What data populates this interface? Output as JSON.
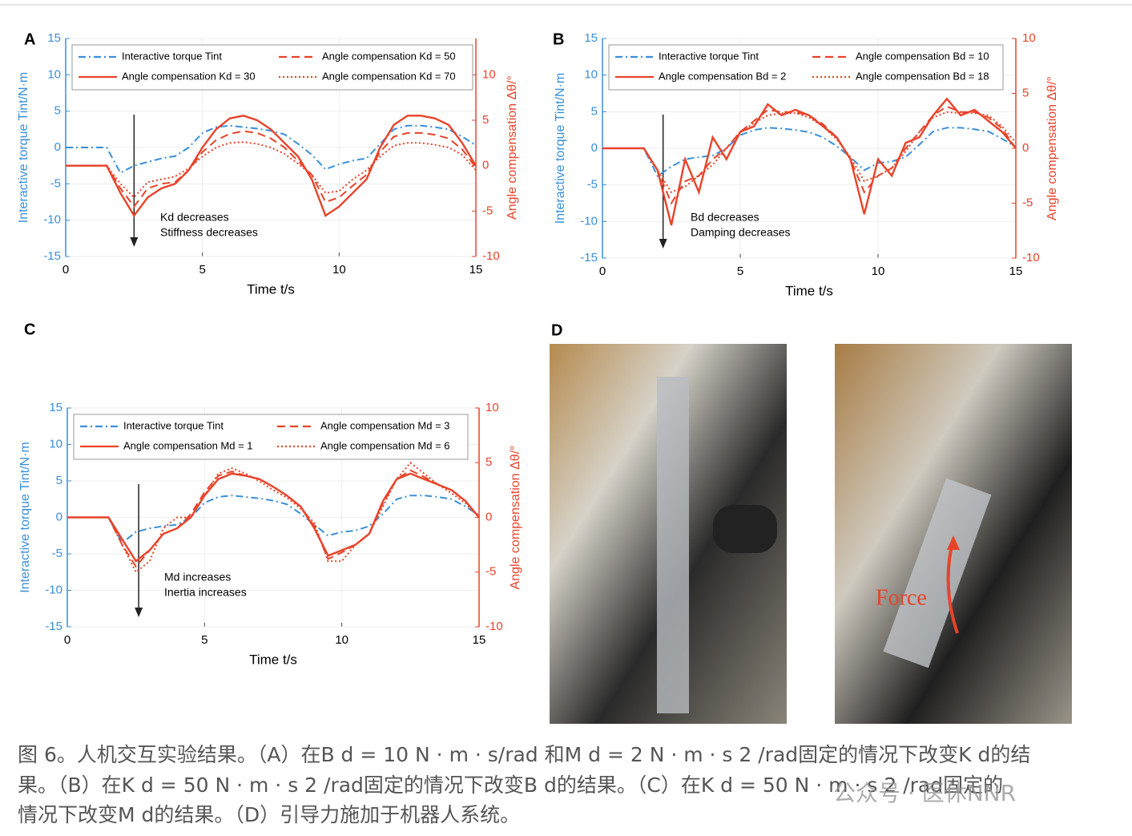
{
  "chart_data": [
    {
      "type": "line",
      "panel": "A",
      "xlabel": "Time t/s",
      "ylabel": "Interactive torque Tint/N·m",
      "y2label": "Angle compensation Δθ/°",
      "annotation": [
        "Kd decreases",
        "Stiffness decreases"
      ],
      "xlim": [
        0,
        15
      ],
      "xticks": [
        0,
        5,
        10,
        15
      ],
      "ylim": [
        -15,
        15
      ],
      "yticks": [
        -15,
        -10,
        -5,
        0,
        5,
        10,
        15
      ],
      "y2lim": [
        -10,
        14
      ],
      "y2ticks": [
        -10,
        -5,
        0,
        5,
        10
      ],
      "x": [
        0,
        0.5,
        1,
        1.5,
        2,
        2.5,
        3,
        3.5,
        4,
        4.5,
        5,
        5.5,
        6,
        6.5,
        7,
        7.5,
        8,
        8.5,
        9,
        9.5,
        10,
        10.5,
        11,
        11.5,
        12,
        12.5,
        13,
        13.5,
        14,
        14.5,
        15
      ],
      "series": [
        {
          "name": "Interactive torque Tint",
          "color": "#3a8fd9",
          "dash": "dashdot",
          "values": [
            0,
            0,
            0,
            0,
            -3.5,
            -2.5,
            -2,
            -1.5,
            -1.2,
            0,
            2,
            2.8,
            3,
            2.8,
            2.6,
            2.3,
            1.8,
            0.5,
            -1,
            -3,
            -2.3,
            -1.8,
            -1.5,
            0.5,
            2.5,
            3,
            3,
            2.8,
            2.5,
            1.5,
            0.3
          ]
        },
        {
          "name": "Angle compensation Kd = 30",
          "color": "#e8432a",
          "dash": "solid",
          "axis": "y2",
          "values": [
            0,
            0,
            0,
            0,
            -3,
            -5.5,
            -3.5,
            -2.5,
            -2,
            -0.5,
            2,
            4,
            5.2,
            5.5,
            5,
            4,
            2.5,
            1,
            -1.5,
            -5.5,
            -4.5,
            -3,
            -1.5,
            2,
            4.5,
            5.5,
            5.5,
            5.2,
            4.5,
            2.5,
            0
          ]
        },
        {
          "name": "Angle compensation Kd = 50",
          "color": "#e8432a",
          "dash": "dashed",
          "axis": "y2",
          "values": [
            0,
            0,
            0,
            0,
            -2.5,
            -4.5,
            -2.5,
            -2,
            -1.8,
            -0.5,
            1.5,
            2.8,
            3.5,
            3.8,
            3.6,
            3,
            2,
            0.5,
            -1,
            -4,
            -3.5,
            -2.2,
            -1,
            1.5,
            3.2,
            3.6,
            3.6,
            3.4,
            3,
            1.8,
            -0.2
          ]
        },
        {
          "name": "Angle compensation Kd = 70",
          "color": "#e8432a",
          "dash": "dotted",
          "axis": "y2",
          "values": [
            0,
            0,
            0,
            0,
            -2,
            -3.5,
            -1.8,
            -1.5,
            -1.2,
            -0.3,
            1,
            2,
            2.5,
            2.6,
            2.4,
            2,
            1.3,
            0.2,
            -1,
            -3,
            -2.8,
            -1.5,
            -0.5,
            1,
            2.2,
            2.5,
            2.5,
            2.3,
            2,
            1.2,
            -0.5
          ]
        }
      ]
    },
    {
      "type": "line",
      "panel": "B",
      "xlabel": "Time t/s",
      "ylabel": "Interactive torque Tint/N·m",
      "y2label": "Angle compensation Δθ/°",
      "annotation": [
        "Bd decreases",
        "Damping decreases"
      ],
      "xlim": [
        0,
        15
      ],
      "xticks": [
        0,
        5,
        10,
        15
      ],
      "ylim": [
        -15,
        15
      ],
      "yticks": [
        -15,
        -10,
        -5,
        0,
        5,
        10,
        15
      ],
      "y2lim": [
        -10,
        10
      ],
      "y2ticks": [
        -10,
        -5,
        0,
        5,
        10
      ],
      "x": [
        0,
        0.5,
        1,
        1.5,
        2,
        2.5,
        3,
        3.5,
        4,
        4.5,
        5,
        5.5,
        6,
        6.5,
        7,
        7.5,
        8,
        8.5,
        9,
        9.5,
        10,
        10.5,
        11,
        11.5,
        12,
        12.5,
        13,
        13.5,
        14,
        14.5,
        15
      ],
      "series": [
        {
          "name": "Interactive torque Tint",
          "color": "#3a8fd9",
          "dash": "dashdot",
          "values": [
            0,
            0,
            0,
            0,
            -3.8,
            -2.5,
            -1.5,
            -1.2,
            -1,
            0,
            1.8,
            2.5,
            2.8,
            2.7,
            2.5,
            2.2,
            1.5,
            0.3,
            -1.2,
            -3,
            -2,
            -1.8,
            -1.2,
            0.5,
            2.3,
            2.8,
            2.8,
            2.6,
            2.3,
            1.3,
            0.2
          ]
        },
        {
          "name": "Angle compensation Bd = 2",
          "color": "#e8432a",
          "dash": "solid",
          "axis": "y2",
          "values": [
            0,
            0,
            0,
            0,
            -2,
            -7,
            -1,
            -4,
            1,
            -1,
            1.5,
            2,
            4,
            3,
            3.5,
            3,
            2,
            1,
            -1,
            -6,
            -1,
            -2.5,
            0.5,
            1,
            3,
            4.5,
            3,
            3.5,
            2.5,
            1.5,
            0
          ]
        },
        {
          "name": "Angle compensation Bd = 10",
          "color": "#e8432a",
          "dash": "dashed",
          "axis": "y2",
          "values": [
            0,
            0,
            0,
            0,
            -2,
            -5,
            -3,
            -2.5,
            -1,
            0,
            1.5,
            2.5,
            3.5,
            3.3,
            3.3,
            3,
            2.2,
            1,
            -1,
            -4,
            -2.5,
            -1.8,
            0,
            1.5,
            3,
            3.8,
            3.3,
            3.3,
            2.8,
            1.8,
            0
          ]
        },
        {
          "name": "Angle compensation Bd = 18",
          "color": "#e8432a",
          "dash": "dotted",
          "axis": "y2",
          "values": [
            0,
            0,
            0,
            0,
            -2,
            -4,
            -3.5,
            -2.5,
            -1.5,
            0,
            1.5,
            2.3,
            3,
            3.2,
            3.2,
            2.8,
            2,
            0.8,
            -0.8,
            -3,
            -2.5,
            -1.8,
            -0.3,
            1.5,
            2.8,
            3.3,
            3.2,
            3.2,
            3,
            2,
            0.5
          ]
        }
      ]
    },
    {
      "type": "line",
      "panel": "C",
      "xlabel": "Time t/s",
      "ylabel": "Interactive torque Tint/N·m",
      "y2label": "Angle compensation Δθ/°",
      "annotation": [
        "Md increases",
        "Inertia increases"
      ],
      "xlim": [
        0,
        15
      ],
      "xticks": [
        0,
        5,
        10,
        15
      ],
      "ylim": [
        -15,
        15
      ],
      "yticks": [
        -15,
        -10,
        -5,
        0,
        5,
        10,
        15
      ],
      "y2lim": [
        -10,
        10
      ],
      "y2ticks": [
        -10,
        -5,
        0,
        5,
        10
      ],
      "x": [
        0,
        0.5,
        1,
        1.5,
        2,
        2.5,
        3,
        3.5,
        4,
        4.5,
        5,
        5.5,
        6,
        6.5,
        7,
        7.5,
        8,
        8.5,
        9,
        9.5,
        10,
        10.5,
        11,
        11.5,
        12,
        12.5,
        13,
        13.5,
        14,
        14.5,
        15
      ],
      "series": [
        {
          "name": "Interactive torque Tint",
          "color": "#3a8fd9",
          "dash": "dashdot",
          "values": [
            0,
            0,
            0,
            0,
            -3.5,
            -2,
            -1.5,
            -1.2,
            -1,
            0,
            2,
            2.8,
            3,
            2.8,
            2.6,
            2.3,
            1.8,
            0.5,
            -1,
            -2.5,
            -2,
            -1.8,
            -1.2,
            0.5,
            2.5,
            3,
            3,
            2.8,
            2.5,
            1.5,
            0.3
          ]
        },
        {
          "name": "Angle compensation Md = 1",
          "color": "#e8432a",
          "dash": "solid",
          "axis": "y2",
          "values": [
            0,
            0,
            0,
            0,
            -2,
            -4,
            -3,
            -1.5,
            -1,
            0,
            2,
            3.5,
            4,
            3.8,
            3.5,
            2.8,
            2,
            1,
            -1,
            -3.5,
            -3,
            -2.5,
            -1.5,
            1.5,
            3.5,
            4,
            3.5,
            3,
            2.5,
            1.5,
            0
          ]
        },
        {
          "name": "Angle compensation Md = 3",
          "color": "#e8432a",
          "dash": "dashed",
          "axis": "y2",
          "values": [
            0,
            0,
            0,
            0,
            -2.5,
            -4.5,
            -3,
            -1.5,
            -1,
            0.3,
            2.3,
            3.8,
            4.2,
            3.8,
            3.5,
            2.8,
            2,
            1,
            -0.8,
            -3.8,
            -3.2,
            -2.5,
            -1.5,
            1.3,
            3.5,
            4.3,
            3.7,
            3,
            2.5,
            1.5,
            0
          ]
        },
        {
          "name": "Angle compensation Md = 6",
          "color": "#e8432a",
          "dash": "dotted",
          "axis": "y2",
          "values": [
            0,
            0,
            0,
            0,
            -2.5,
            -5,
            -4,
            -1,
            0,
            0,
            2,
            4,
            4.5,
            4,
            3.3,
            2.5,
            1.8,
            0.8,
            -0.5,
            -4,
            -4,
            -2.5,
            -1.5,
            1,
            3.5,
            5,
            4,
            3,
            2.2,
            1.3,
            0
          ]
        }
      ]
    }
  ],
  "photo": {
    "panel": "D",
    "annotation": "Force"
  },
  "caption": {
    "lines": [
      "图 6。人机交互实验结果。（A）在B d = 10 N · m · s/rad 和M d = 2 N · m · s 2 /rad固定的情况下改变K d的结",
      "果。（B）在K d = 50 N · m · s 2 /rad固定的情况下改变B d的结果。（C）在K d = 50 N · m · s 2 /rad固定的",
      "情况下改变M d的结果。（D）引导力施加于机器人系统。"
    ]
  },
  "watermark": "公众号 · 医休NNR"
}
